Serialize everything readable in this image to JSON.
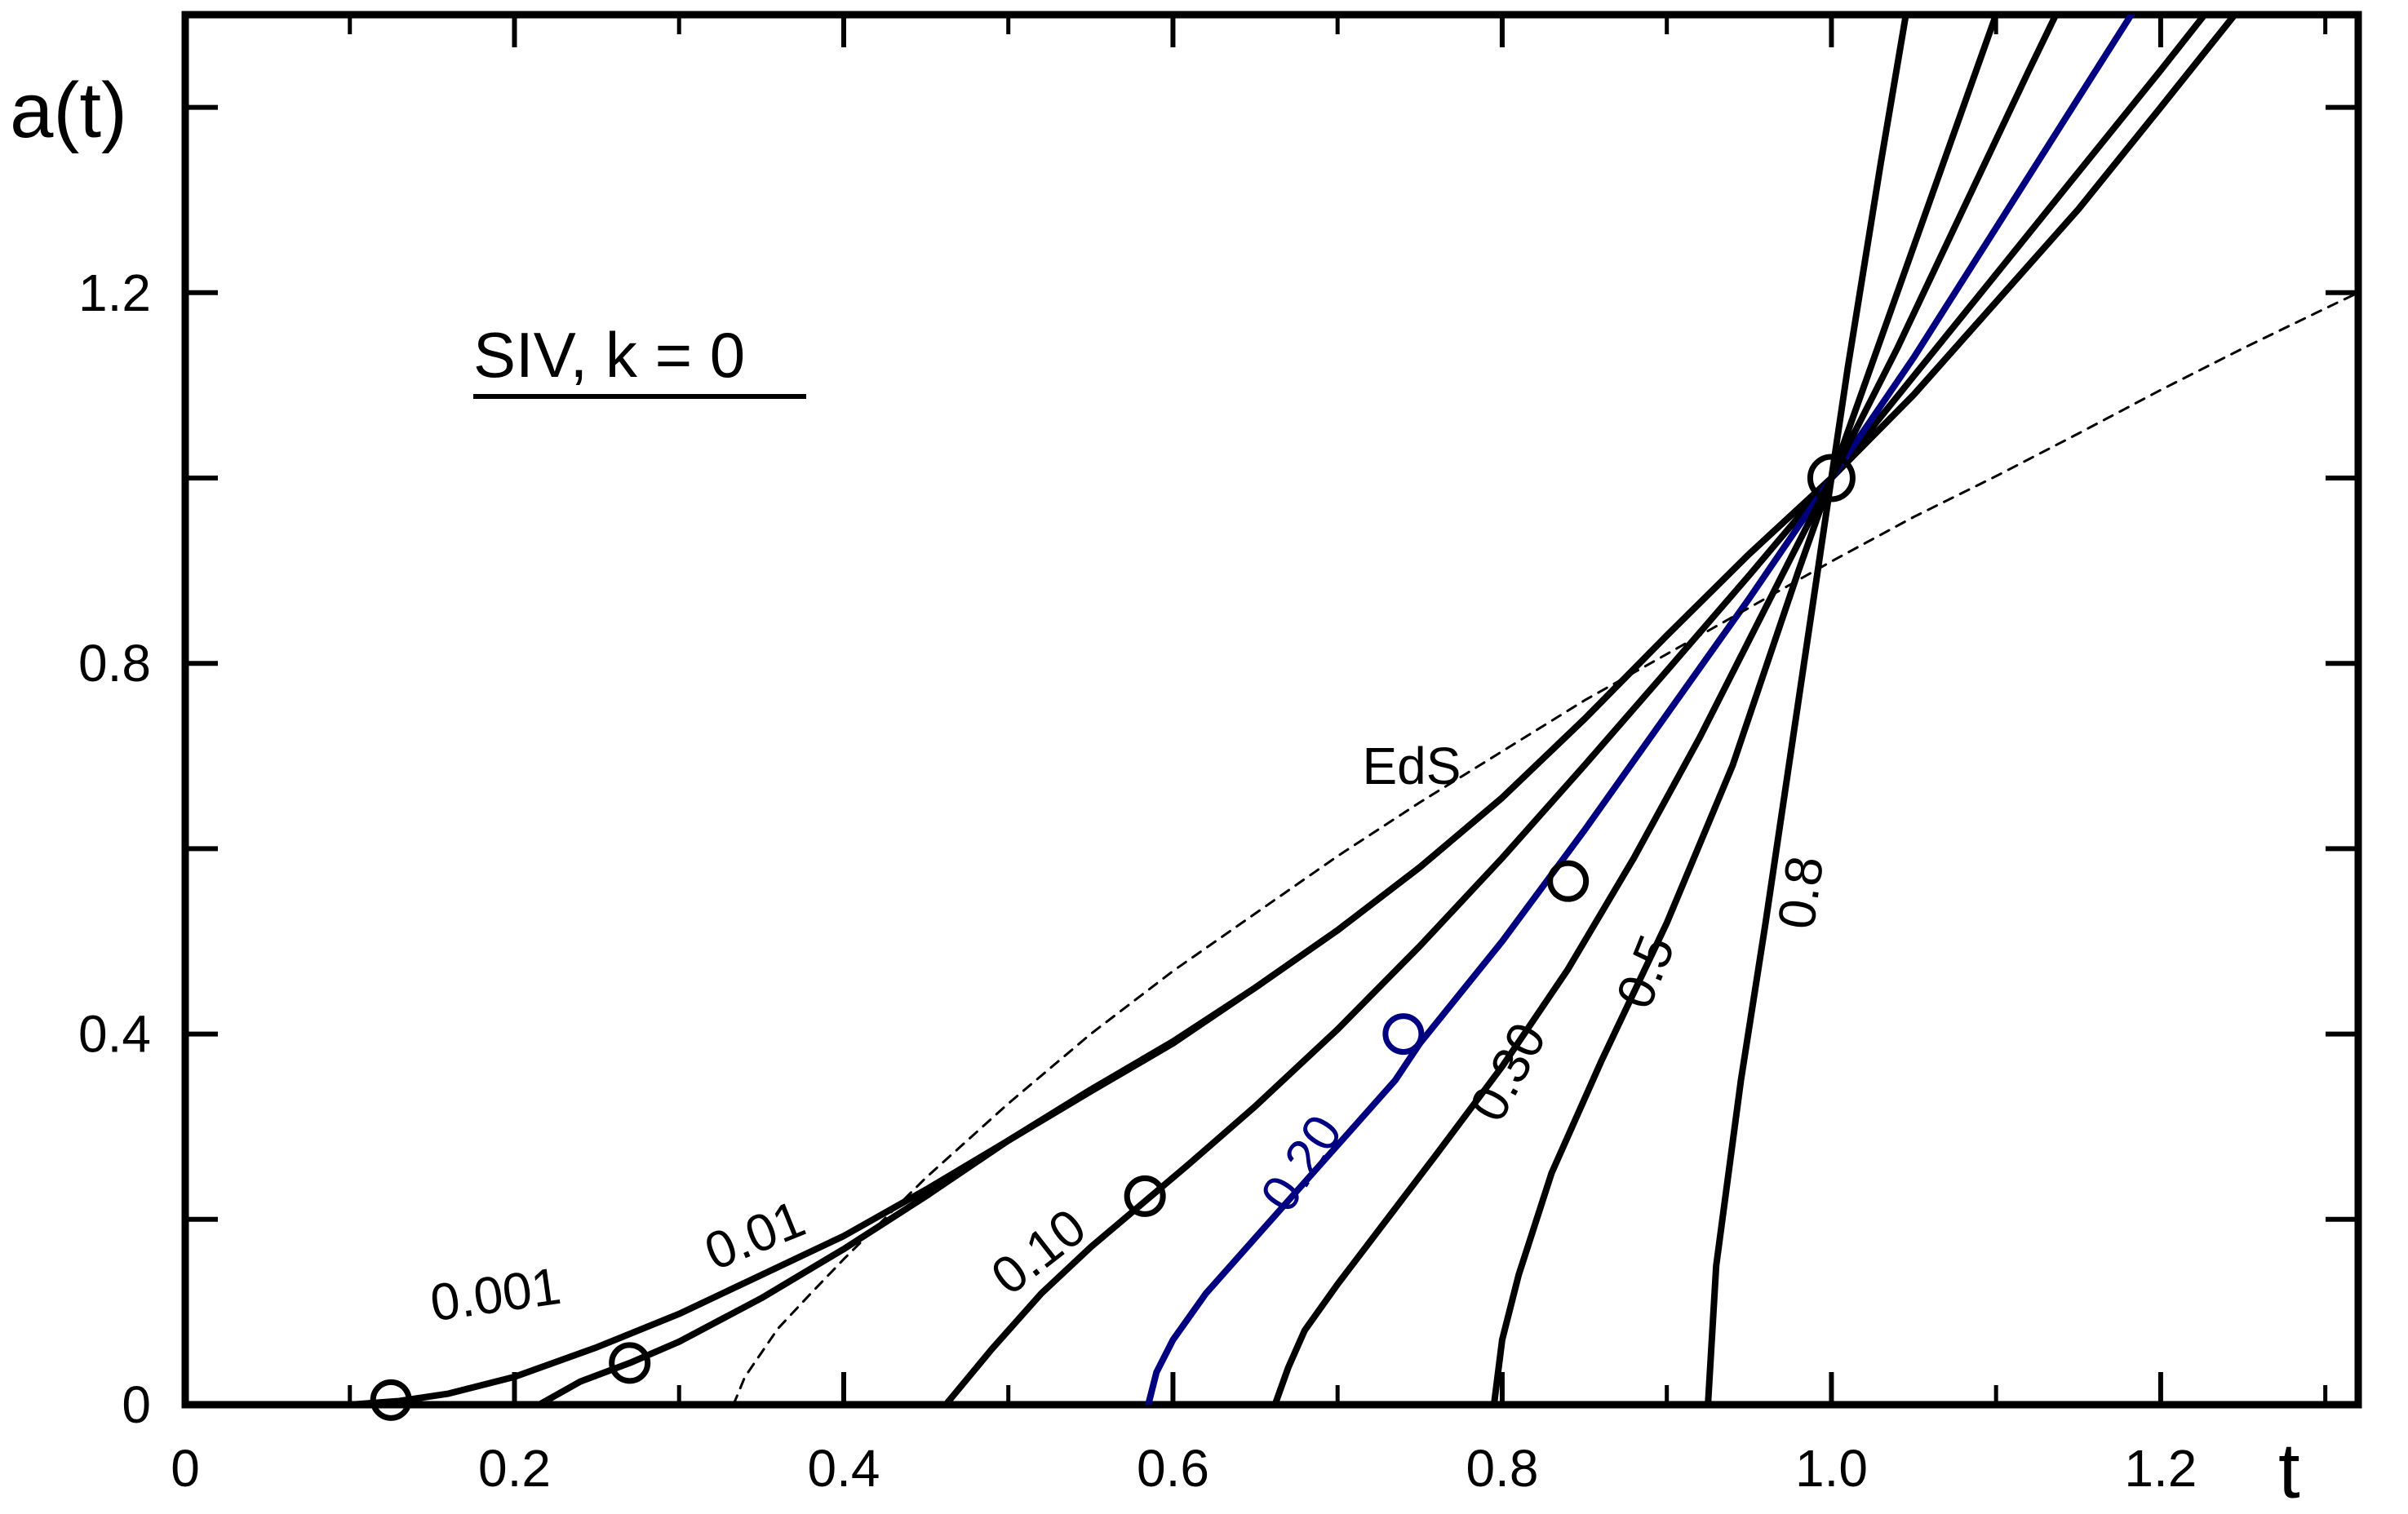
{
  "chart_data": {
    "type": "line",
    "title": "SIV, k = 0",
    "xlabel": "t",
    "ylabel": "a(t)",
    "xlim": [
      0,
      1.32
    ],
    "ylim": [
      0,
      1.5
    ],
    "x_ticks": [
      0,
      0.2,
      0.4,
      0.6,
      0.8,
      1.0,
      1.2
    ],
    "x_tick_labels": [
      "0",
      "0.2",
      "0.4",
      "0.6",
      "0.8",
      "1.0",
      "1.2"
    ],
    "y_ticks": [
      0,
      0.4,
      0.8,
      1.2
    ],
    "y_tick_labels": [
      "0",
      "0.4",
      "0.8",
      "1.2"
    ],
    "grid": false,
    "series": [
      {
        "name": "0.001",
        "label": "0.001",
        "color": "#000000",
        "style": "solid",
        "x": [
          0.1,
          0.13,
          0.16,
          0.2,
          0.25,
          0.3,
          0.35,
          0.4,
          0.45,
          0.5,
          0.55,
          0.6,
          0.65,
          0.7,
          0.75,
          0.8,
          0.85,
          0.9,
          0.95,
          1.0,
          1.05,
          1.1,
          1.15,
          1.2,
          1.245
        ],
        "y": [
          0.0,
          0.004,
          0.012,
          0.03,
          0.062,
          0.098,
          0.14,
          0.182,
          0.232,
          0.285,
          0.338,
          0.39,
          0.45,
          0.512,
          0.58,
          0.655,
          0.74,
          0.83,
          0.918,
          1.0,
          1.09,
          1.19,
          1.29,
          1.4,
          1.5
        ],
        "marker": {
          "x": 0.125,
          "y": 0.005
        },
        "label_pos": {
          "x": 0.19,
          "y": 0.1
        },
        "label_angle": -8
      },
      {
        "name": "0.01",
        "label": "0.01",
        "color": "#000000",
        "style": "solid",
        "x": [
          0.215,
          0.24,
          0.27,
          0.3,
          0.35,
          0.4,
          0.45,
          0.5,
          0.55,
          0.6,
          0.65,
          0.7,
          0.75,
          0.8,
          0.85,
          0.9,
          0.95,
          1.0,
          1.05,
          1.1,
          1.15,
          1.2,
          1.245
        ],
        "y": [
          0.0,
          0.025,
          0.045,
          0.068,
          0.115,
          0.168,
          0.225,
          0.285,
          0.34,
          0.392,
          0.45,
          0.512,
          0.58,
          0.655,
          0.74,
          0.83,
          0.918,
          1.0,
          1.09,
          1.19,
          1.29,
          1.4,
          1.5
        ],
        "marker": {
          "x": 0.27,
          "y": 0.045
        },
        "label_pos": {
          "x": 0.35,
          "y": 0.165
        },
        "label_angle": -22
      },
      {
        "name": "0.10",
        "label": "0.10",
        "color": "#000000",
        "style": "solid",
        "x": [
          0.462,
          0.49,
          0.52,
          0.55,
          0.58,
          0.61,
          0.65,
          0.7,
          0.75,
          0.8,
          0.85,
          0.9,
          0.95,
          1.0,
          1.05,
          1.1,
          1.15,
          1.2,
          1.24
        ],
        "y": [
          0.0,
          0.06,
          0.12,
          0.17,
          0.215,
          0.26,
          0.322,
          0.405,
          0.495,
          0.59,
          0.69,
          0.792,
          0.895,
          1.0,
          1.11,
          1.22,
          1.33,
          1.44,
          1.53
        ],
        "marker": {
          "x": 0.583,
          "y": 0.225
        },
        "label_pos": {
          "x": 0.525,
          "y": 0.15
        },
        "label_angle": -38
      },
      {
        "name": "0.20",
        "label": "0.20",
        "color": "#000080",
        "style": "solid",
        "x": [
          0.585,
          0.59,
          0.6,
          0.62,
          0.65,
          0.68,
          0.7,
          0.735,
          0.75,
          0.8,
          0.85,
          0.9,
          0.95,
          1.0,
          1.05,
          1.1,
          1.15,
          1.2
        ],
        "y": [
          0.0,
          0.035,
          0.07,
          0.12,
          0.18,
          0.24,
          0.28,
          0.35,
          0.39,
          0.5,
          0.62,
          0.745,
          0.87,
          1.0,
          1.13,
          1.27,
          1.41,
          1.55
        ],
        "marker": {
          "x": 0.74,
          "y": 0.4
        },
        "label_pos": {
          "x": 0.687,
          "y": 0.25
        },
        "label_angle": -57
      },
      {
        "name": "0.30",
        "label": "0.30",
        "color": "#000000",
        "style": "solid",
        "x": [
          0.662,
          0.67,
          0.68,
          0.7,
          0.73,
          0.76,
          0.8,
          0.84,
          0.88,
          0.92,
          0.96,
          1.0,
          1.04,
          1.08,
          1.12,
          1.15
        ],
        "y": [
          0.0,
          0.04,
          0.08,
          0.13,
          0.2,
          0.27,
          0.365,
          0.47,
          0.59,
          0.72,
          0.86,
          1.0,
          1.14,
          1.29,
          1.44,
          1.55
        ],
        "marker": {
          "x": 0.84,
          "y": 0.565
        },
        "label_pos": {
          "x": 0.813,
          "y": 0.35
        },
        "label_angle": -62
      },
      {
        "name": "0.5",
        "label": "0.5",
        "color": "#000000",
        "style": "solid",
        "x": [
          0.795,
          0.8,
          0.81,
          0.83,
          0.86,
          0.9,
          0.94,
          0.98,
          1.0,
          1.04,
          1.08,
          1.11
        ],
        "y": [
          0.0,
          0.07,
          0.14,
          0.25,
          0.37,
          0.52,
          0.69,
          0.9,
          1.0,
          1.2,
          1.4,
          1.55
        ],
        "label_pos": {
          "x": 0.897,
          "y": 0.46
        },
        "label_angle": -68
      },
      {
        "name": "0.8",
        "label": "0.8",
        "color": "#000000",
        "style": "solid",
        "x": [
          0.925,
          0.93,
          0.945,
          0.96,
          0.975,
          0.99,
          1.0,
          1.01,
          1.03,
          1.05
        ],
        "y": [
          0.0,
          0.15,
          0.35,
          0.52,
          0.7,
          0.88,
          1.0,
          1.12,
          1.34,
          1.55
        ],
        "label_pos": {
          "x": 0.992,
          "y": 0.55
        },
        "label_angle": -82
      },
      {
        "name": "EdS",
        "label": "EdS",
        "color": "#000000",
        "style": "dashed",
        "x": [
          0.333,
          0.34,
          0.36,
          0.38,
          0.4,
          0.45,
          0.5,
          0.55,
          0.6,
          0.65,
          0.7,
          0.75,
          0.8,
          0.85,
          0.9,
          0.95,
          1.0,
          1.05,
          1.1,
          1.15,
          1.2,
          1.25,
          1.3,
          1.32
        ],
        "y": [
          0.0,
          0.03,
          0.082,
          0.12,
          0.157,
          0.245,
          0.325,
          0.4,
          0.468,
          0.53,
          0.592,
          0.65,
          0.705,
          0.76,
          0.81,
          0.86,
          0.91,
          0.958,
          1.002,
          1.048,
          1.095,
          1.14,
          1.183,
          1.2
        ],
        "label_pos": {
          "x": 0.745,
          "y": 0.67
        },
        "label_angle": 0
      }
    ],
    "intersection_marker": {
      "x": 1.0,
      "y": 1.0
    },
    "annotation": "SIV, k = 0"
  }
}
